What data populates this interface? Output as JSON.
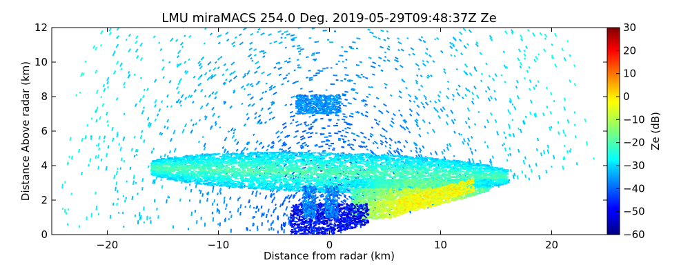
{
  "chart_data": {
    "type": "heatmap",
    "title": "LMU miraMACS 254.0 Deg. 2019-05-29T09:48:37Z  Ze",
    "xlabel": "Distance from radar (km)",
    "ylabel": "Distance Above radar  (km)",
    "xlim": [
      -25,
      25
    ],
    "ylim": [
      0,
      12
    ],
    "xticks": [
      "−20",
      "−10",
      "0",
      "10",
      "20"
    ],
    "xtick_values": [
      -20,
      -10,
      0,
      10,
      20
    ],
    "yticks": [
      "0",
      "2",
      "4",
      "6",
      "8",
      "10",
      "12"
    ],
    "ytick_values": [
      0,
      2,
      4,
      6,
      8,
      10,
      12
    ],
    "colorbar": {
      "label": "Ze (dB)",
      "range": [
        -60,
        30
      ],
      "ticks": [
        "−60",
        "−50",
        "−40",
        "−30",
        "−20",
        "−10",
        "0",
        "10",
        "20",
        "30"
      ],
      "tick_values": [
        -60,
        -50,
        -40,
        -30,
        -20,
        -10,
        0,
        10,
        20,
        30
      ],
      "colormap": "jet"
    },
    "features": [
      {
        "name": "cloud layer",
        "x_range": [
          -16,
          16
        ],
        "z_range": [
          2.5,
          4.5
        ],
        "ze_db": -28
      },
      {
        "name": "elevated cloud patch",
        "x_range": [
          -3,
          1
        ],
        "z_range": [
          7,
          8
        ],
        "ze_db": -38
      },
      {
        "name": "precipitation region",
        "x_range": [
          3,
          14
        ],
        "z_range": [
          1,
          3
        ],
        "ze_db": -12
      },
      {
        "name": "near-radar weak echoes",
        "x_range": [
          -3,
          3
        ],
        "z_range": [
          0,
          1.7
        ],
        "ze_db": -50
      },
      {
        "name": "noise field",
        "x_range": [
          -24,
          24
        ],
        "z_range": [
          0,
          12
        ],
        "ze_db": -32
      }
    ]
  }
}
